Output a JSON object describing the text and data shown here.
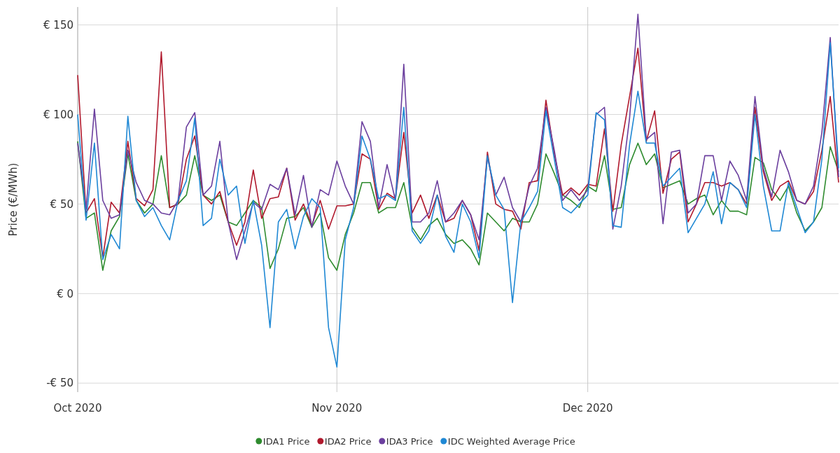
{
  "chart_data": {
    "type": "line",
    "ylabel": "Price (€/MWh)",
    "x": [
      "2020-10-01",
      "2020-10-02",
      "2020-10-03",
      "2020-10-04",
      "2020-10-05",
      "2020-10-06",
      "2020-10-07",
      "2020-10-08",
      "2020-10-09",
      "2020-10-10",
      "2020-10-11",
      "2020-10-12",
      "2020-10-13",
      "2020-10-14",
      "2020-10-15",
      "2020-10-16",
      "2020-10-17",
      "2020-10-18",
      "2020-10-19",
      "2020-10-20",
      "2020-10-21",
      "2020-10-22",
      "2020-10-23",
      "2020-10-24",
      "2020-10-25",
      "2020-10-26",
      "2020-10-27",
      "2020-10-28",
      "2020-10-29",
      "2020-10-30",
      "2020-10-31",
      "2020-11-01",
      "2020-11-02",
      "2020-11-03",
      "2020-11-04",
      "2020-11-05",
      "2020-11-06",
      "2020-11-07",
      "2020-11-08",
      "2020-11-09",
      "2020-11-10",
      "2020-11-11",
      "2020-11-12",
      "2020-11-13",
      "2020-11-14",
      "2020-11-15",
      "2020-11-16",
      "2020-11-17",
      "2020-11-18",
      "2020-11-19",
      "2020-11-20",
      "2020-11-21",
      "2020-11-22",
      "2020-11-23",
      "2020-11-24",
      "2020-11-25",
      "2020-11-26",
      "2020-11-27",
      "2020-11-28",
      "2020-11-29",
      "2020-11-30",
      "2020-12-01",
      "2020-12-02",
      "2020-12-03",
      "2020-12-04",
      "2020-12-05",
      "2020-12-06",
      "2020-12-07",
      "2020-12-08",
      "2020-12-09",
      "2020-12-10",
      "2020-12-11",
      "2020-12-12",
      "2020-12-13",
      "2020-12-14",
      "2020-12-15",
      "2020-12-16",
      "2020-12-17",
      "2020-12-18",
      "2020-12-19",
      "2020-12-20",
      "2020-12-21",
      "2020-12-22",
      "2020-12-23",
      "2020-12-24",
      "2020-12-25",
      "2020-12-26",
      "2020-12-27",
      "2020-12-28",
      "2020-12-29",
      "2020-12-30",
      "2020-12-31"
    ],
    "series": [
      {
        "name": "IDA1 Price",
        "color": "#2e8b2e",
        "values": [
          85,
          42,
          45,
          13,
          35,
          43,
          78,
          52,
          45,
          50,
          77,
          48,
          50,
          55,
          77,
          55,
          52,
          55,
          40,
          38,
          45,
          52,
          48,
          14,
          25,
          42,
          43,
          48,
          37,
          45,
          20,
          13,
          33,
          45,
          62,
          62,
          45,
          48,
          48,
          62,
          37,
          30,
          38,
          42,
          33,
          28,
          30,
          25,
          16,
          45,
          40,
          35,
          42,
          40,
          40,
          50,
          78,
          67,
          55,
          52,
          48,
          60,
          57,
          77,
          47,
          48,
          72,
          84,
          72,
          78,
          59,
          61,
          63,
          50,
          53,
          55,
          44,
          52,
          46,
          46,
          44,
          76,
          73,
          58,
          52,
          60,
          45,
          35,
          40,
          48,
          82,
          68
        ]
      },
      {
        "name": "IDA2 Price",
        "color": "#b0182c",
        "values": [
          122,
          45,
          53,
          20,
          51,
          45,
          85,
          53,
          49,
          58,
          135,
          48,
          50,
          75,
          88,
          55,
          50,
          57,
          40,
          27,
          40,
          69,
          42,
          53,
          54,
          70,
          41,
          50,
          38,
          52,
          36,
          49,
          49,
          50,
          78,
          75,
          47,
          56,
          53,
          90,
          45,
          55,
          42,
          55,
          40,
          42,
          52,
          44,
          24,
          79,
          50,
          47,
          46,
          36,
          62,
          63,
          108,
          78,
          55,
          59,
          55,
          61,
          60,
          92,
          46,
          83,
          110,
          137,
          85,
          102,
          56,
          75,
          79,
          40,
          50,
          62,
          62,
          60,
          62,
          58,
          50,
          104,
          68,
          52,
          60,
          63,
          52,
          50,
          57,
          80,
          110,
          62
        ]
      },
      {
        "name": "IDA3 Price",
        "color": "#6b3f9e",
        "values": [
          84,
          47,
          103,
          52,
          42,
          44,
          80,
          62,
          52,
          50,
          45,
          44,
          52,
          93,
          101,
          55,
          60,
          85,
          40,
          19,
          35,
          51,
          47,
          61,
          58,
          70,
          44,
          66,
          37,
          58,
          55,
          74,
          60,
          50,
          96,
          85,
          48,
          72,
          52,
          128,
          40,
          40,
          45,
          63,
          40,
          45,
          52,
          44,
          30,
          76,
          55,
          65,
          48,
          40,
          60,
          70,
          104,
          80,
          52,
          58,
          52,
          58,
          100,
          104,
          36,
          60,
          98,
          156,
          86,
          90,
          39,
          79,
          80,
          45,
          50,
          77,
          77,
          52,
          74,
          66,
          52,
          110,
          70,
          54,
          80,
          68,
          52,
          50,
          60,
          90,
          143,
          65
        ]
      },
      {
        "name": "IDC Weighted Average Price",
        "color": "#1f88d4",
        "values": [
          100,
          41,
          84,
          19,
          33,
          25,
          99,
          52,
          43,
          48,
          38,
          30,
          52,
          63,
          98,
          38,
          42,
          75,
          55,
          60,
          28,
          52,
          27,
          -19,
          40,
          47,
          25,
          43,
          53,
          48,
          -19,
          -41,
          30,
          48,
          88,
          75,
          53,
          55,
          52,
          104,
          35,
          28,
          35,
          55,
          32,
          23,
          50,
          40,
          20,
          77,
          55,
          47,
          -5,
          40,
          48,
          57,
          102,
          75,
          48,
          45,
          50,
          55,
          101,
          97,
          38,
          37,
          83,
          113,
          84,
          84,
          60,
          65,
          70,
          34,
          42,
          50,
          68,
          39,
          62,
          58,
          48,
          100,
          60,
          35,
          35,
          62,
          48,
          34,
          40,
          75,
          140,
          70
        ]
      }
    ],
    "xlim": [
      "2020-10-01",
      "2020-12-31"
    ],
    "xticks": [
      {
        "value": "2020-10-01",
        "label": "Oct 2020"
      },
      {
        "value": "2020-11-01",
        "label": "Nov 2020"
      },
      {
        "value": "2020-12-01",
        "label": "Dec 2020"
      }
    ],
    "ylim": [
      -55,
      160
    ],
    "yticks": [
      {
        "value": -50,
        "label": "-€ 50"
      },
      {
        "value": 0,
        "label": "€ 0"
      },
      {
        "value": 50,
        "label": "€ 50"
      },
      {
        "value": 100,
        "label": "€ 100"
      },
      {
        "value": 150,
        "label": "€ 150"
      }
    ],
    "grid": true,
    "legend": "bottom",
    "marker": "none",
    "line_style": "solid"
  }
}
